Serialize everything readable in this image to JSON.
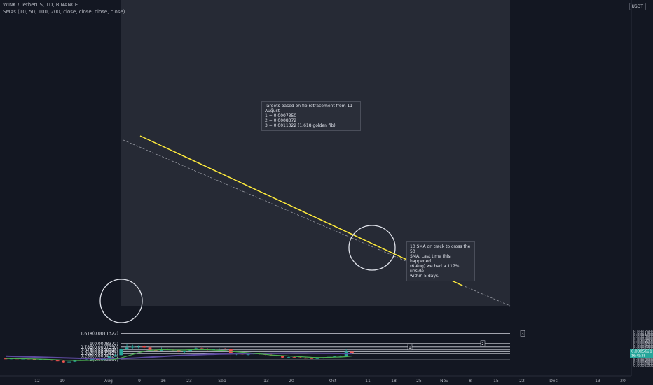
{
  "header": {
    "symbol_line": "WINK / TetherUS, 1D, BINANCE",
    "indicator_line": "SMAs (10, 50, 100, 200, close, close, close, close)",
    "currency": "USDT"
  },
  "notes": {
    "targets": [
      "Targets based on fib retracement from 11 August",
      "1 = 0.0007350",
      "2 = 0.0008372",
      "3 = 0.0011322 (1.618 golden fib)"
    ],
    "sma": [
      "10 SMA on track to cross the 50",
      "SMA. Last time this happened",
      "(6 Aug) we had a 117% upside",
      "within 5 days."
    ]
  },
  "price_badge": {
    "value": "0.0005621",
    "sub": "16:45:28"
  },
  "colors": {
    "background": "#131722",
    "fib_zone": "#363a45",
    "up": "#26a69a",
    "down": "#ef5350",
    "sma10": "#4caf50",
    "sma50": "#5c4a9e",
    "trendline": "#ffeb3b",
    "dashed": "#9598a1"
  },
  "chart_data": {
    "type": "candlestick",
    "y_ticks": [
      "0.0012000",
      "0.0011500",
      "0.0011000",
      "0.0010500",
      "0.0010000",
      "0.0009500",
      "0.0009000",
      "0.0008500",
      "0.0008000",
      "0.0007500",
      "0.0007000",
      "0.0006500",
      "0.0006000",
      "0.0005500",
      "0.0005000",
      "0.0004500",
      "0.0004000",
      "0.0003500",
      "0.0003000",
      "0.0002500",
      "0.0002000"
    ],
    "x_ticks": [
      "12",
      "19",
      "Aug",
      "9",
      "16",
      "23",
      "Sep",
      "13",
      "20",
      "Oct",
      "11",
      "18",
      "25",
      "Nov",
      "8",
      "15",
      "22",
      "Dec",
      "13",
      "20"
    ],
    "fib_levels": [
      {
        "label": "1.618(0.0011322)",
        "price": 0.0011322,
        "marker": "3"
      },
      {
        "label": "1(0.0008372)",
        "price": 0.0008372,
        "marker": "2"
      },
      {
        "label": "0.786(0.0007350)",
        "price": 0.000735,
        "marker": "1"
      },
      {
        "label": "0.618(0.0006548)",
        "price": 0.0006548,
        "marker": ""
      },
      {
        "label": "0.5(0.0005984)",
        "price": 0.0005984,
        "marker": ""
      },
      {
        "label": "0.382(0.0005421)",
        "price": 0.0005421,
        "marker": ""
      },
      {
        "label": "0.236(0.0004724)",
        "price": 0.0004724,
        "marker": ""
      },
      {
        "label": "0(0.0003597)",
        "price": 0.0003597,
        "marker": ""
      }
    ],
    "candles": [
      {
        "o": 0.0004,
        "h": 0.00041,
        "l": 0.00038,
        "c": 0.00039
      },
      {
        "o": 0.00039,
        "h": 0.00041,
        "l": 0.00038,
        "c": 0.0004
      },
      {
        "o": 0.0004,
        "h": 0.00041,
        "l": 0.00039,
        "c": 0.00039
      },
      {
        "o": 0.00039,
        "h": 0.0004,
        "l": 0.00038,
        "c": 0.000395
      },
      {
        "o": 0.000395,
        "h": 0.0004,
        "l": 0.00037,
        "c": 0.00038
      },
      {
        "o": 0.00038,
        "h": 0.000395,
        "l": 0.00036,
        "c": 0.00037
      },
      {
        "o": 0.00037,
        "h": 0.00039,
        "l": 0.00036,
        "c": 0.00038
      },
      {
        "o": 0.00038,
        "h": 0.00039,
        "l": 0.00035,
        "c": 0.00036
      },
      {
        "o": 0.00036,
        "h": 0.00037,
        "l": 0.00033,
        "c": 0.00034
      },
      {
        "o": 0.00034,
        "h": 0.00036,
        "l": 0.00032,
        "c": 0.00033
      },
      {
        "o": 0.00033,
        "h": 0.00034,
        "l": 0.000275,
        "c": 0.00029
      },
      {
        "o": 0.00029,
        "h": 0.00032,
        "l": 0.00028,
        "c": 0.00031
      },
      {
        "o": 0.00031,
        "h": 0.00035,
        "l": 0.0003,
        "c": 0.00034
      },
      {
        "o": 0.00034,
        "h": 0.00042,
        "l": 0.00033,
        "c": 0.00036
      },
      {
        "o": 0.00036,
        "h": 0.00038,
        "l": 0.00035,
        "c": 0.00037
      },
      {
        "o": 0.00037,
        "h": 0.00041,
        "l": 0.00036,
        "c": 0.00038
      },
      {
        "o": 0.00038,
        "h": 0.00039,
        "l": 0.00035,
        "c": 0.00036
      },
      {
        "o": 0.00036,
        "h": 0.0004,
        "l": 0.00035,
        "c": 0.00039
      },
      {
        "o": 0.00039,
        "h": 0.00047,
        "l": 0.00038,
        "c": 0.00046
      },
      {
        "o": 0.00046,
        "h": 0.00052,
        "l": 0.00045,
        "c": 0.0005
      },
      {
        "o": 0.0005,
        "h": 0.0007,
        "l": 0.00048,
        "c": 0.00068
      },
      {
        "o": 0.00068,
        "h": 0.00082,
        "l": 0.00065,
        "c": 0.00072
      },
      {
        "o": 0.00072,
        "h": 0.0008,
        "l": 0.00068,
        "c": 0.00074
      },
      {
        "o": 0.00074,
        "h": 0.00078,
        "l": 0.0007,
        "c": 0.00077
      },
      {
        "o": 0.00077,
        "h": 0.00078,
        "l": 0.0007,
        "c": 0.00072
      },
      {
        "o": 0.00072,
        "h": 0.00074,
        "l": 0.00062,
        "c": 0.00064
      },
      {
        "o": 0.00064,
        "h": 0.00068,
        "l": 0.0006,
        "c": 0.00062
      },
      {
        "o": 0.00062,
        "h": 0.00072,
        "l": 0.00061,
        "c": 0.00068
      },
      {
        "o": 0.00068,
        "h": 0.00071,
        "l": 0.00064,
        "c": 0.00066
      },
      {
        "o": 0.00066,
        "h": 0.00069,
        "l": 0.00063,
        "c": 0.00065
      },
      {
        "o": 0.00065,
        "h": 0.00067,
        "l": 0.00058,
        "c": 0.0006
      },
      {
        "o": 0.0006,
        "h": 0.00063,
        "l": 0.00057,
        "c": 0.00061
      },
      {
        "o": 0.00061,
        "h": 0.00068,
        "l": 0.0006,
        "c": 0.00066
      },
      {
        "o": 0.00066,
        "h": 0.00072,
        "l": 0.00065,
        "c": 0.0007
      },
      {
        "o": 0.0007,
        "h": 0.00074,
        "l": 0.00067,
        "c": 0.00068
      },
      {
        "o": 0.00068,
        "h": 0.0007,
        "l": 0.00064,
        "c": 0.00066
      },
      {
        "o": 0.00066,
        "h": 0.00069,
        "l": 0.00064,
        "c": 0.00067
      },
      {
        "o": 0.00067,
        "h": 0.00071,
        "l": 0.00066,
        "c": 0.00069
      },
      {
        "o": 0.00069,
        "h": 0.00071,
        "l": 0.00067,
        "c": 0.00068
      },
      {
        "o": 0.00068,
        "h": 0.0007,
        "l": 0.00036,
        "c": 0.00053
      },
      {
        "o": 0.00053,
        "h": 0.00056,
        "l": 0.0005,
        "c": 0.00054
      },
      {
        "o": 0.00054,
        "h": 0.00056,
        "l": 0.00051,
        "c": 0.00052
      },
      {
        "o": 0.00052,
        "h": 0.00055,
        "l": 0.00049,
        "c": 0.00053
      },
      {
        "o": 0.00053,
        "h": 0.00056,
        "l": 0.00051,
        "c": 0.00055
      },
      {
        "o": 0.00055,
        "h": 0.00057,
        "l": 0.00052,
        "c": 0.00053
      },
      {
        "o": 0.00053,
        "h": 0.00055,
        "l": 0.0005,
        "c": 0.00051
      },
      {
        "o": 0.00051,
        "h": 0.00054,
        "l": 0.00049,
        "c": 0.0005
      },
      {
        "o": 0.0005,
        "h": 0.00051,
        "l": 0.00046,
        "c": 0.00047
      },
      {
        "o": 0.00047,
        "h": 0.00048,
        "l": 0.00042,
        "c": 0.00043
      },
      {
        "o": 0.00043,
        "h": 0.00045,
        "l": 0.00041,
        "c": 0.00044
      },
      {
        "o": 0.00044,
        "h": 0.00046,
        "l": 0.00042,
        "c": 0.00043
      },
      {
        "o": 0.00043,
        "h": 0.00045,
        "l": 0.00041,
        "c": 0.00042
      },
      {
        "o": 0.00042,
        "h": 0.00043,
        "l": 0.0004,
        "c": 0.00041
      },
      {
        "o": 0.00041,
        "h": 0.00042,
        "l": 0.00039,
        "c": 0.0004
      },
      {
        "o": 0.0004,
        "h": 0.00042,
        "l": 0.00039,
        "c": 0.00041
      },
      {
        "o": 0.00041,
        "h": 0.00044,
        "l": 0.0004,
        "c": 0.00043
      },
      {
        "o": 0.00043,
        "h": 0.00046,
        "l": 0.00042,
        "c": 0.00045
      },
      {
        "o": 0.00045,
        "h": 0.00048,
        "l": 0.00044,
        "c": 0.00047
      },
      {
        "o": 0.00047,
        "h": 0.00049,
        "l": 0.00045,
        "c": 0.00048
      },
      {
        "o": 0.00048,
        "h": 0.00067,
        "l": 0.00047,
        "c": 0.0006
      },
      {
        "o": 0.0006,
        "h": 0.00066,
        "l": 0.00054,
        "c": 0.000562
      }
    ],
    "sma10": [
      0.0004,
      0.000398,
      0.000396,
      0.000393,
      0.00039,
      0.000386,
      0.000382,
      0.000376,
      0.00037,
      0.000362,
      0.000352,
      0.000346,
      0.000342,
      0.00034,
      0.000342,
      0.000345,
      0.000348,
      0.000352,
      0.00036,
      0.00038,
      0.00042,
      0.00047,
      0.00052,
      0.00057,
      0.00061,
      0.00064,
      0.00065,
      0.00066,
      0.00066,
      0.00065,
      0.00065,
      0.00065,
      0.00066,
      0.00066,
      0.00066,
      0.00066,
      0.00065,
      0.00064,
      0.00063,
      0.00061,
      0.000595,
      0.00058,
      0.000565,
      0.00055,
      0.000535,
      0.00052,
      0.000505,
      0.000495,
      0.000485,
      0.000475,
      0.000465,
      0.000455,
      0.000445,
      0.000435,
      0.00043,
      0.00043,
      0.000435,
      0.00044,
      0.000445,
      0.000455,
      0.000475
    ],
    "sma50": [
      0.00047,
      0.000465,
      0.00046,
      0.000455,
      0.00045,
      0.000445,
      0.00044,
      0.000435,
      0.00043,
      0.000425,
      0.00042,
      0.000415,
      0.00041,
      0.000405,
      0.0004,
      0.000398,
      0.000396,
      0.000395,
      0.000395,
      0.000397,
      0.0004,
      0.000405,
      0.000412,
      0.00042,
      0.00043,
      0.00044,
      0.00045,
      0.00046,
      0.00047,
      0.00048,
      0.000488,
      0.000495,
      0.000502,
      0.000509,
      0.000515,
      0.00052,
      0.000525,
      0.00053,
      0.000534,
      0.000537,
      0.00054,
      0.000542,
      0.000544,
      0.000546,
      0.000548,
      0.00055,
      0.000552,
      0.000554,
      0.000556,
      0.000558,
      0.00056,
      0.00056,
      0.00056,
      0.000558,
      0.000556,
      0.000554,
      0.000552,
      0.00055,
      0.000548,
      0.000546,
      0.000545
    ]
  }
}
